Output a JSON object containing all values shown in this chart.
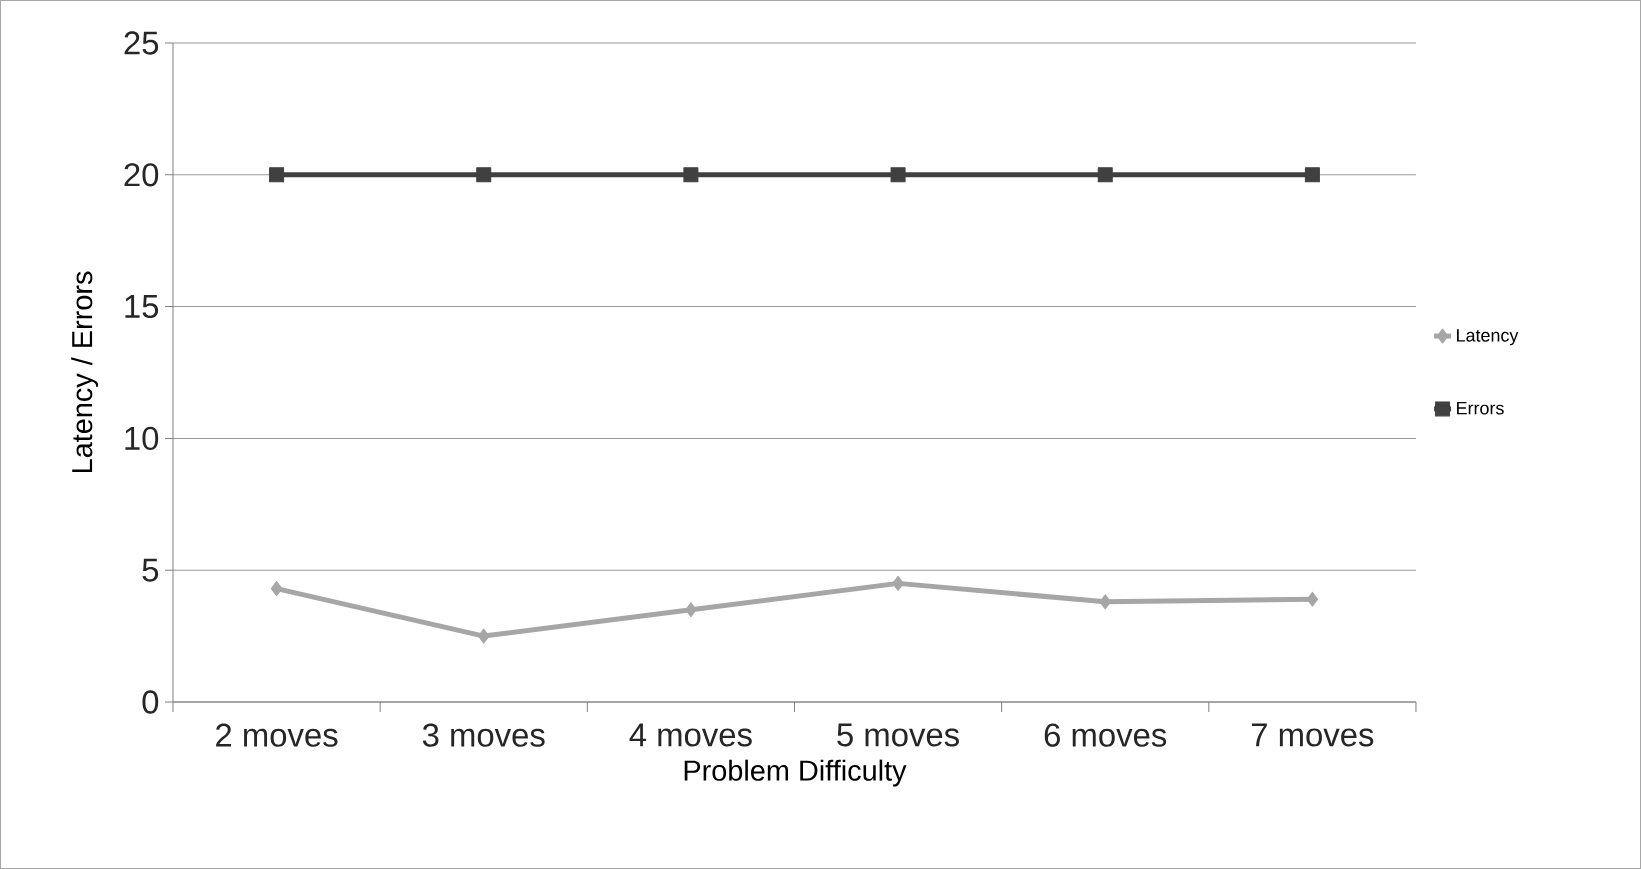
{
  "chart_data": {
    "type": "line",
    "xlabel": "Problem Difficulty",
    "ylabel": "Latency / Errors",
    "categories": [
      "2 moves",
      "3 moves",
      "4 moves",
      "5 moves",
      "6 moves",
      "7 moves"
    ],
    "series": [
      {
        "name": "Latency",
        "color": "#a6a6a6",
        "marker": "diamond",
        "values": [
          4.3,
          2.5,
          3.5,
          4.5,
          3.8,
          3.9
        ]
      },
      {
        "name": "Errors",
        "color": "#404040",
        "marker": "square",
        "values": [
          20,
          20,
          20,
          20,
          20,
          20
        ]
      }
    ],
    "ylim": [
      0,
      25
    ],
    "yticks": [
      0,
      5,
      10,
      15,
      20,
      25
    ],
    "grid": "y",
    "legend": "right",
    "line_style": "solid"
  }
}
